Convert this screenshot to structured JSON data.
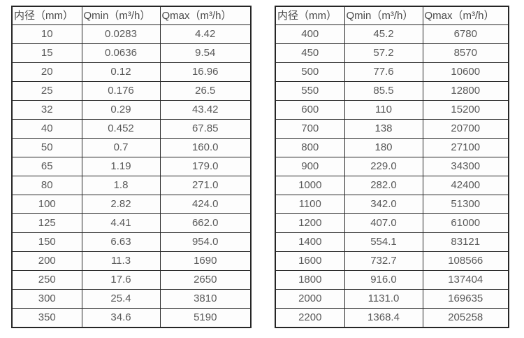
{
  "page": {
    "background": "#ffffff",
    "description_colors": {
      "border": "#262626",
      "header_text": "#4a4a4a",
      "cell_text": "#595959",
      "cell_background": "#fdfdfd"
    }
  },
  "tables": [
    {
      "id": "small-diameter-flow-table",
      "headers": [
        "内径（mm）",
        "Qmin（m³/h）",
        "Qmax（m³/h）"
      ],
      "rows": [
        [
          "10",
          "0.0283",
          "4.42"
        ],
        [
          "15",
          "0.0636",
          "9.54"
        ],
        [
          "20",
          "0.12",
          "16.96"
        ],
        [
          "25",
          "0.176",
          "26.5"
        ],
        [
          "32",
          "0.29",
          "43.42"
        ],
        [
          "40",
          "0.452",
          "67.85"
        ],
        [
          "50",
          "0.7",
          "160.0"
        ],
        [
          "65",
          "1.19",
          "179.0"
        ],
        [
          "80",
          "1.8",
          "271.0"
        ],
        [
          "100",
          "2.82",
          "424.0"
        ],
        [
          "125",
          "4.41",
          "662.0"
        ],
        [
          "150",
          "6.63",
          "954.0"
        ],
        [
          "200",
          "11.3",
          "1690"
        ],
        [
          "250",
          "17.6",
          "2650"
        ],
        [
          "300",
          "25.4",
          "3810"
        ],
        [
          "350",
          "34.6",
          "5190"
        ]
      ]
    },
    {
      "id": "large-diameter-flow-table",
      "headers": [
        "内径（mm）",
        "Qmin（m³/h）",
        "Qmax（m³/h）"
      ],
      "rows": [
        [
          "400",
          "45.2",
          "6780"
        ],
        [
          "450",
          "57.2",
          "8570"
        ],
        [
          "500",
          "77.6",
          "10600"
        ],
        [
          "550",
          "85.5",
          "12800"
        ],
        [
          "600",
          "110",
          "15200"
        ],
        [
          "700",
          "138",
          "20700"
        ],
        [
          "800",
          "180",
          "27100"
        ],
        [
          "900",
          "229.0",
          "34300"
        ],
        [
          "1000",
          "282.0",
          "42400"
        ],
        [
          "1100",
          "342.0",
          "51300"
        ],
        [
          "1200",
          "407.0",
          "61000"
        ],
        [
          "1400",
          "554.1",
          "83121"
        ],
        [
          "1600",
          "732.7",
          "108566"
        ],
        [
          "1800",
          "916.0",
          "137404"
        ],
        [
          "2000",
          "1131.0",
          "169635"
        ],
        [
          "2200",
          "1368.4",
          "205258"
        ]
      ]
    }
  ]
}
